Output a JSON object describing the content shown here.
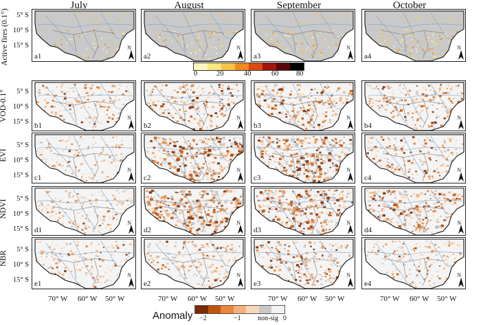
{
  "columns": [
    "July",
    "August",
    "September",
    "October"
  ],
  "rows": [
    {
      "title": "Active fires (0.1°)",
      "kind": "fire",
      "lats": [
        "5° S",
        "10° S",
        "15° S"
      ],
      "labels": [
        "a1",
        "a2",
        "a3",
        "a4"
      ]
    },
    {
      "title": "VOD-0.1°",
      "kind": "anom",
      "lats": [
        "5° S",
        "10° S",
        "15° S"
      ],
      "labels": [
        "b1",
        "b2",
        "b3",
        "b4"
      ],
      "intensity": [
        0.45,
        0.6,
        0.75,
        0.6
      ]
    },
    {
      "title": "EVI",
      "kind": "anom",
      "lats": [
        "5° S",
        "10° S",
        "15° S"
      ],
      "labels": [
        "c1",
        "c2",
        "c3",
        "c4"
      ],
      "intensity": [
        0.25,
        0.95,
        1.0,
        0.45
      ]
    },
    {
      "title": "NDVI",
      "kind": "anom",
      "lats": [
        "5° S",
        "10° S",
        "15° S"
      ],
      "labels": [
        "d1",
        "d2",
        "d3",
        "d4"
      ],
      "intensity": [
        0.35,
        1.0,
        1.0,
        0.8
      ]
    },
    {
      "title": "NBR",
      "kind": "anom",
      "lats": [
        "5° S",
        "10° S",
        "15° S"
      ],
      "labels": [
        "e1",
        "e2",
        "e3",
        "e4"
      ],
      "intensity": [
        0.35,
        0.45,
        0.6,
        0.4
      ]
    }
  ],
  "north_label": "N",
  "longitudes": [
    "70° W",
    "60° W",
    "50° W"
  ],
  "fire_colorbar": {
    "ticks": [
      "0",
      "20",
      "40",
      "60",
      "80"
    ],
    "colors": [
      "#fff7c0",
      "#fde680",
      "#f9c247",
      "#f28a1e",
      "#d94a0f",
      "#a3130a",
      "#5a0606",
      "#000000"
    ]
  },
  "anomaly_legend": {
    "title": "Anomaly",
    "ticks": [
      "−2",
      "−1",
      "non-sig",
      "0"
    ],
    "colors": [
      "#7a2a05",
      "#c0540e",
      "#e8873a",
      "#f4b07a",
      "#f9d6b6",
      "#c8c8c8",
      "#f2f2f2"
    ]
  }
}
